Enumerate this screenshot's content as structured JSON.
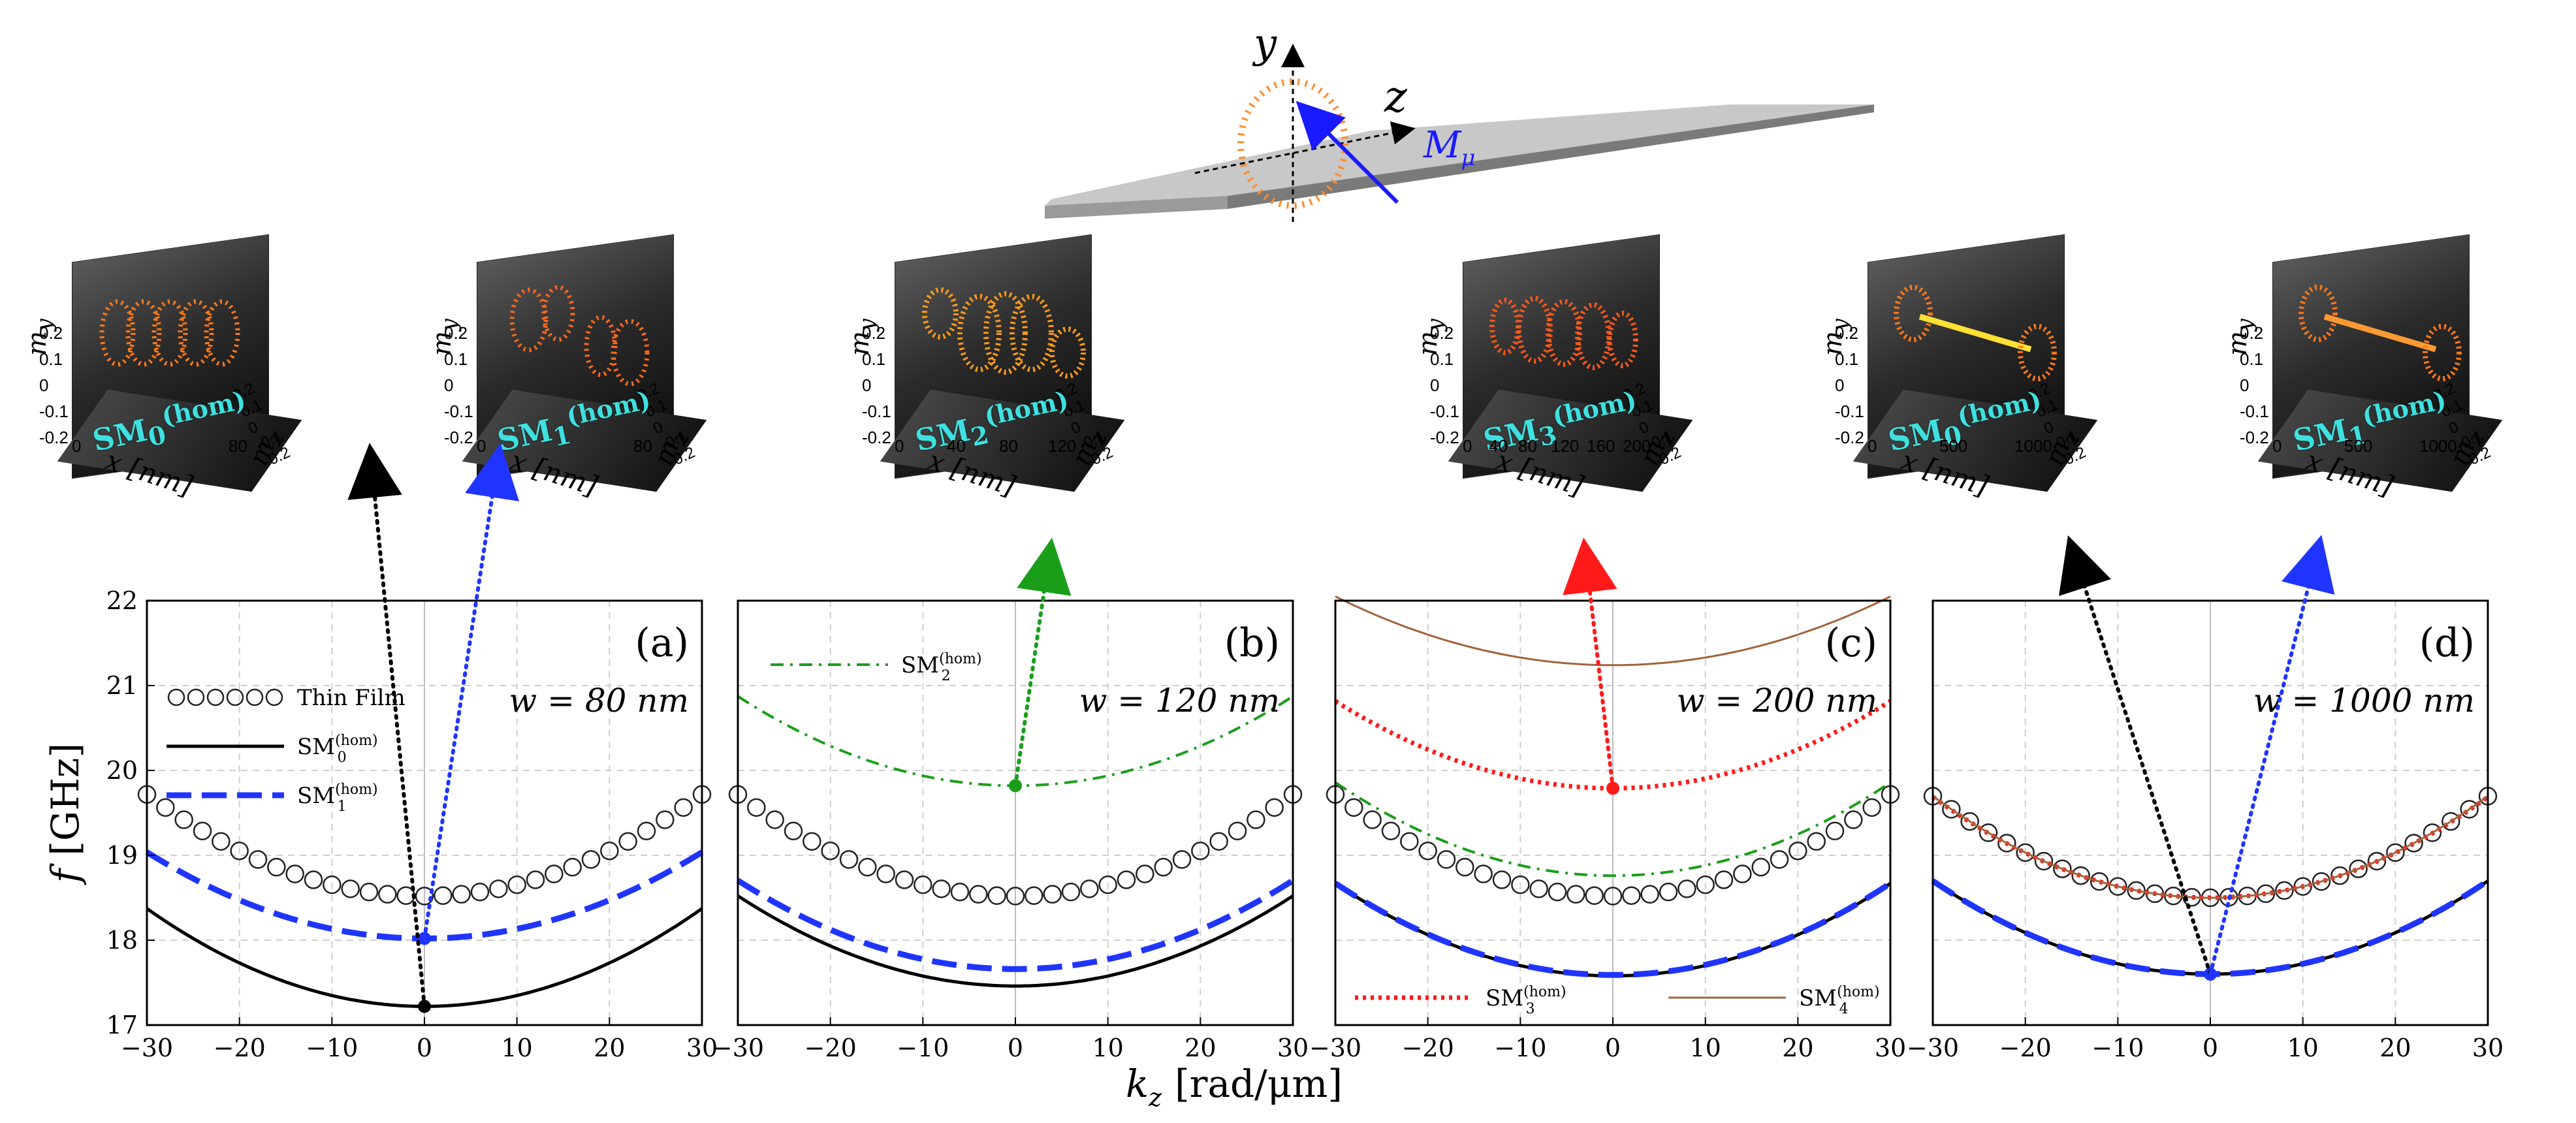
{
  "colors": {
    "thin_film": "#222222",
    "sm0": "#000000",
    "sm1": "#1f35ff",
    "sm2": "#1a9e1a",
    "sm3": "#ff1a1a",
    "sm4": "#a0643c",
    "inset_label": "#3fe0e0"
  },
  "schematic": {
    "y_axis_label": "y",
    "z_axis_label": "z",
    "magnetization_label": "M",
    "magnetization_sub": "μ"
  },
  "insets": [
    {
      "mode_base": "SM",
      "mode_sub": "0",
      "mode_sup": "(hom)",
      "xlabel": "x [nm]",
      "xticks": [
        "0",
        "80"
      ],
      "ylabel": "m",
      "ylabel_sub": "y",
      "zlabel": "m",
      "zlabel_sub": "z",
      "yticks": [
        "0.2",
        "0.1",
        "0",
        "-0.1",
        "-0.2"
      ],
      "zticks": [
        "0.2",
        "0.1",
        "0",
        "-0.1",
        "-0.2"
      ]
    },
    {
      "mode_base": "SM",
      "mode_sub": "1",
      "mode_sup": "(hom)",
      "xlabel": "x [nm]",
      "xticks": [
        "0",
        "80"
      ],
      "ylabel": "m",
      "ylabel_sub": "y",
      "zlabel": "m",
      "zlabel_sub": "z",
      "yticks": [
        "0.2",
        "0.1",
        "0",
        "-0.1",
        "-0.2"
      ],
      "zticks": [
        "0.2",
        "0.1",
        "0",
        "-0.1",
        "-0.2"
      ]
    },
    {
      "mode_base": "SM",
      "mode_sub": "2",
      "mode_sup": "(hom)",
      "xlabel": "x [nm]",
      "xticks": [
        "0",
        "40",
        "80",
        "120"
      ],
      "ylabel": "m",
      "ylabel_sub": "y",
      "zlabel": "m",
      "zlabel_sub": "z",
      "yticks": [
        "0.2",
        "0.1",
        "0",
        "-0.1",
        "-0.2"
      ],
      "zticks": [
        "0.2",
        "0.1",
        "0",
        "-0.1",
        "-0.2"
      ]
    },
    {
      "mode_base": "SM",
      "mode_sub": "3",
      "mode_sup": "(hom)",
      "xlabel": "x [nm]",
      "xticks": [
        "0",
        "40",
        "80",
        "120",
        "160",
        "200"
      ],
      "ylabel": "m",
      "ylabel_sub": "y",
      "zlabel": "m",
      "zlabel_sub": "z",
      "yticks": [
        "0.2",
        "0.1",
        "0",
        "-0.1",
        "-0.2"
      ],
      "zticks": [
        "0.2",
        "0.1",
        "0",
        "-0.1",
        "-0.2"
      ]
    },
    {
      "mode_base": "SM",
      "mode_sub": "0",
      "mode_sup": "(hom)",
      "xlabel": "x [nm]",
      "xticks": [
        "0",
        "500",
        "1000"
      ],
      "ylabel": "m",
      "ylabel_sub": "y",
      "zlabel": "m",
      "zlabel_sub": "z",
      "yticks": [
        "0.2",
        "0.1",
        "0",
        "-0.1",
        "-0.2"
      ],
      "zticks": [
        "0.2",
        "0.1",
        "0",
        "-0.1",
        "-0.2"
      ]
    },
    {
      "mode_base": "SM",
      "mode_sub": "1",
      "mode_sup": "(hom)",
      "xlabel": "x [nm]",
      "xticks": [
        "0",
        "500",
        "1000"
      ],
      "ylabel": "m",
      "ylabel_sub": "y",
      "zlabel": "m",
      "zlabel_sub": "z",
      "yticks": [
        "0.2",
        "0.1",
        "0",
        "-0.1",
        "-0.2"
      ],
      "zticks": [
        "0.2",
        "0.1",
        "0",
        "-0.1",
        "-0.2"
      ]
    }
  ],
  "chart_data": [
    {
      "type": "line",
      "panel": "(a)",
      "annotation": "w = 80 nm",
      "xlabel": "k_z [rad/μm]",
      "ylabel": "f [GHz]",
      "xlim": [
        -30,
        30
      ],
      "ylim": [
        17,
        22
      ],
      "xticks": [
        "−30",
        "−20",
        "−10",
        "0",
        "10",
        "20",
        "30"
      ],
      "yticks": [
        "17",
        "18",
        "19",
        "20",
        "21",
        "22"
      ],
      "grid": true,
      "legend": [
        {
          "label": "Thin Film",
          "style": "circles"
        },
        {
          "label": "SM",
          "sub": "0",
          "sup": "(hom)",
          "style": "solid-black"
        },
        {
          "label": "SM",
          "sub": "1",
          "sup": "(hom)",
          "style": "dashed-blue"
        }
      ],
      "series": [
        {
          "name": "Thin Film",
          "style": "circles",
          "color_key": "thin_film",
          "f0": 18.52,
          "curv": 0.00133
        },
        {
          "name": "SM0(hom)",
          "style": "solid",
          "color_key": "sm0",
          "f0": 17.22,
          "curv": 0.00128
        },
        {
          "name": "SM1(hom)",
          "style": "dashed",
          "color_key": "sm1",
          "f0": 18.02,
          "curv": 0.00113
        }
      ],
      "markers": [
        {
          "k": 0,
          "f": 17.22,
          "color_key": "sm0"
        },
        {
          "k": 0,
          "f": 18.02,
          "color_key": "sm1"
        }
      ]
    },
    {
      "type": "line",
      "panel": "(b)",
      "annotation": "w = 120 nm",
      "xlim": [
        -30,
        30
      ],
      "ylim": [
        17,
        22
      ],
      "xticks": [
        "−30",
        "−20",
        "−10",
        "0",
        "10",
        "20",
        "30"
      ],
      "grid": true,
      "legend": [
        {
          "label": "SM",
          "sub": "2",
          "sup": "(hom)",
          "style": "dashdot-green"
        }
      ],
      "series": [
        {
          "name": "Thin Film",
          "style": "circles",
          "color_key": "thin_film",
          "f0": 18.52,
          "curv": 0.00133
        },
        {
          "name": "SM0(hom)",
          "style": "solid",
          "color_key": "sm0",
          "f0": 17.46,
          "curv": 0.00118
        },
        {
          "name": "SM1(hom)",
          "style": "dashed",
          "color_key": "sm1",
          "f0": 17.66,
          "curv": 0.00116
        },
        {
          "name": "SM2(hom)",
          "style": "dashdot",
          "color_key": "sm2",
          "f0": 19.82,
          "curv": 0.00117
        }
      ],
      "markers": [
        {
          "k": 0,
          "f": 19.82,
          "color_key": "sm2"
        }
      ]
    },
    {
      "type": "line",
      "panel": "(c)",
      "annotation": "w = 200 nm",
      "xlim": [
        -30,
        30
      ],
      "ylim": [
        17,
        22
      ],
      "xticks": [
        "−30",
        "−20",
        "−10",
        "0",
        "10",
        "20",
        "30"
      ],
      "grid": true,
      "legend": [
        {
          "label": "SM",
          "sub": "3",
          "sup": "(hom)",
          "style": "dotted-red"
        },
        {
          "label": "SM",
          "sub": "4",
          "sup": "(hom)",
          "style": "thin-brown"
        }
      ],
      "series": [
        {
          "name": "Thin Film",
          "style": "circles",
          "color_key": "thin_film",
          "f0": 18.52,
          "curv": 0.00133
        },
        {
          "name": "SM0(hom)",
          "style": "solid",
          "color_key": "sm0",
          "f0": 17.58,
          "curv": 0.00121
        },
        {
          "name": "SM1(hom)",
          "style": "dashed",
          "color_key": "sm1",
          "f0": 17.59,
          "curv": 0.0012
        },
        {
          "name": "SM2(hom)",
          "style": "dashdot",
          "color_key": "sm2",
          "f0": 18.76,
          "curv": 0.00122
        },
        {
          "name": "SM3(hom)",
          "style": "dotted",
          "color_key": "sm3",
          "f0": 19.79,
          "curv": 0.00114
        },
        {
          "name": "SM4(hom)",
          "style": "thin",
          "color_key": "sm4",
          "f0": 21.24,
          "curv": 0.0009
        }
      ],
      "markers": [
        {
          "k": 0,
          "f": 19.79,
          "color_key": "sm3"
        }
      ]
    },
    {
      "type": "line",
      "panel": "(d)",
      "annotation": "w = 1000 nm",
      "xlim": [
        -30,
        30
      ],
      "ylim": [
        17,
        22
      ],
      "xticks": [
        "−30",
        "−20",
        "−10",
        "0",
        "10",
        "20",
        "30"
      ],
      "grid": true,
      "series": [
        {
          "name": "Thin Film",
          "style": "circles",
          "color_key": "thin_film",
          "f0": 18.5,
          "curv": 0.00133
        },
        {
          "name": "SM0(hom)",
          "style": "solid",
          "color_key": "sm0",
          "f0": 17.6,
          "curv": 0.00122
        },
        {
          "name": "SM1(hom)",
          "style": "dashed",
          "color_key": "sm1",
          "f0": 17.6,
          "curv": 0.00122
        },
        {
          "name": "SM3(hom)",
          "style": "dotted",
          "color_key": "sm3",
          "f0": 18.5,
          "curv": 0.00132
        },
        {
          "name": "SM4(hom)",
          "style": "thin",
          "color_key": "sm4",
          "f0": 18.5,
          "curv": 0.00133
        }
      ],
      "markers": [
        {
          "k": 0,
          "f": 17.6,
          "color_key": "sm1"
        }
      ]
    }
  ],
  "shared": {
    "xlabel_base": "k",
    "xlabel_sub": "z",
    "xlabel_unit": "[rad/μm]",
    "ylabel_base": "f",
    "ylabel_unit": "[GHz]"
  }
}
